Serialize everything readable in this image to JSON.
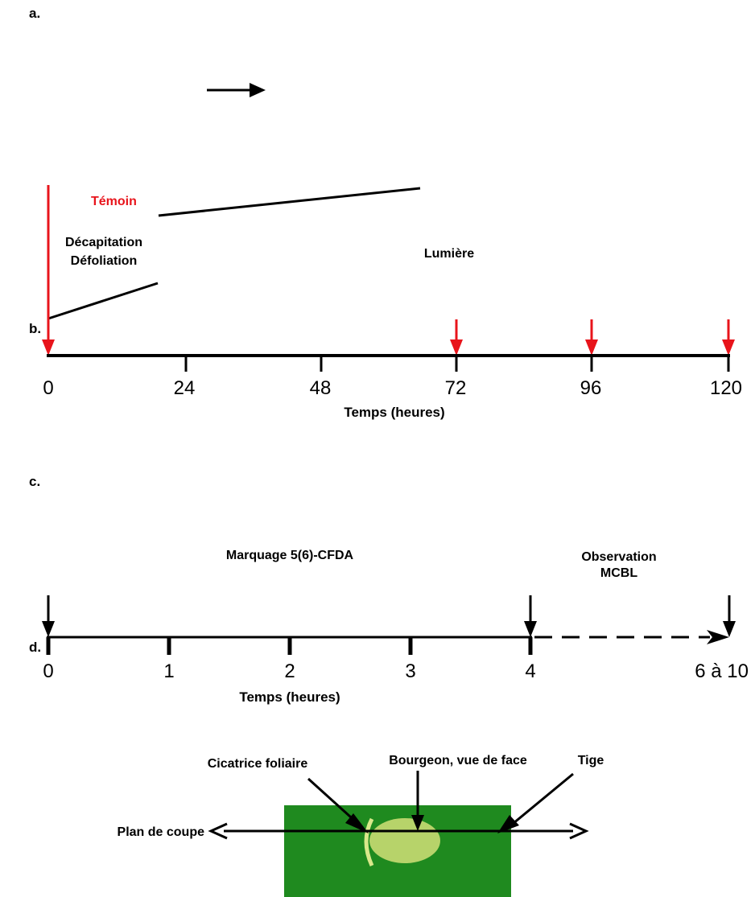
{
  "panels": {
    "a": "a.",
    "b": "b.",
    "c": "c.",
    "d": "d."
  },
  "panel_b": {
    "temoin": "Témoin",
    "decapitation": "Décapitation",
    "defoliation": "Défoliation",
    "lumiere": "Lumière",
    "ticks": [
      "0",
      "24",
      "48",
      "72",
      "96",
      "120"
    ],
    "axis_title": "Temps (heures)",
    "colors": {
      "red": "#e8141b",
      "black": "#000000"
    }
  },
  "panel_c": {
    "marquage": "Marquage 5(6)-CFDA",
    "observation_line1": "Observation",
    "observation_line2": "MCBL",
    "ticks": [
      "0",
      "1",
      "2",
      "3",
      "4"
    ],
    "end_label": "6 à 10",
    "axis_title": "Temps (heures)"
  },
  "panel_d": {
    "cicatrice": "Cicatrice foliaire",
    "bourgeon": "Bourgeon, vue de face",
    "tige": "Tige",
    "plan": "Plan de coupe",
    "colors": {
      "stem": "#1f8a1f",
      "bud": "#b7d36a",
      "scar": "#d8e88a"
    }
  }
}
